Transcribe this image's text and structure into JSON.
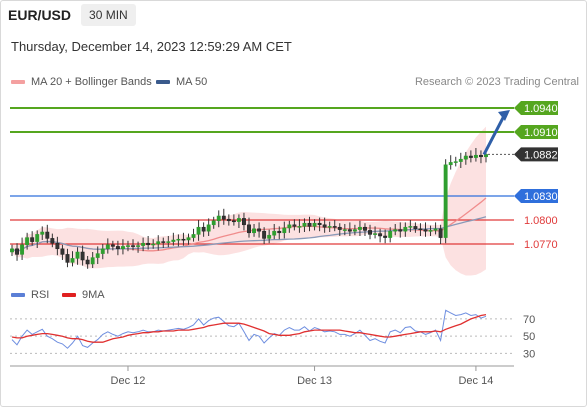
{
  "header": {
    "symbol": "EUR/USD",
    "timeframe": "30 MIN"
  },
  "datetime": "Thursday, December 14, 2023 12:59:29 AM CET",
  "legend": {
    "main": [
      {
        "label": "MA 20 + Bollinger Bands",
        "color": "#f4a0a0"
      },
      {
        "label": "MA 50",
        "color": "#3a5a8c"
      }
    ],
    "rsi": [
      {
        "label": "RSI",
        "color": "#5b7fd6"
      },
      {
        "label": "9MA",
        "color": "#e02020"
      }
    ]
  },
  "credit": "Research © 2023 Trading Central",
  "chart_data": {
    "type": "candlestick",
    "ylim": [
      1.0735,
      1.0955
    ],
    "current_price": 1.0882,
    "levels": [
      {
        "value": 1.094,
        "label": "1.0940",
        "color": "#55a61f",
        "kind": "resistance"
      },
      {
        "value": 1.091,
        "label": "1.0910",
        "color": "#55a61f",
        "kind": "resistance"
      },
      {
        "value": 1.0882,
        "label": "1.0882",
        "color": "#333333",
        "kind": "last"
      },
      {
        "value": 1.083,
        "label": "1.0830",
        "color": "#2f6fdc",
        "kind": "pivot"
      },
      {
        "value": 1.08,
        "label": "1.0800",
        "color": "#e03a3a",
        "kind": "support"
      },
      {
        "value": 1.077,
        "label": "1.0770",
        "color": "#e03a3a",
        "kind": "support"
      }
    ],
    "close": [
      1.0764,
      1.0757,
      1.0769,
      1.0778,
      1.0773,
      1.0782,
      1.0785,
      1.0777,
      1.0771,
      1.0764,
      1.0757,
      1.0747,
      1.0752,
      1.076,
      1.075,
      1.0745,
      1.0753,
      1.0758,
      1.0764,
      1.0769,
      1.0767,
      1.0764,
      1.0767,
      1.0768,
      1.0767,
      1.0768,
      1.0771,
      1.0769,
      1.077,
      1.0773,
      1.0772,
      1.0773,
      1.0775,
      1.0776,
      1.0775,
      1.0778,
      1.0782,
      1.0791,
      1.0786,
      1.0794,
      1.0799,
      1.0805,
      1.0801,
      1.0799,
      1.0798,
      1.0802,
      1.0794,
      1.0784,
      1.0789,
      1.0786,
      1.0777,
      1.0781,
      1.0786,
      1.0784,
      1.079,
      1.0794,
      1.0792,
      1.0792,
      1.0796,
      1.0792,
      1.0796,
      1.0794,
      1.0791,
      1.0792,
      1.0791,
      1.0788,
      1.0788,
      1.0786,
      1.0788,
      1.0791,
      1.0787,
      1.0782,
      1.0783,
      1.078,
      1.0778,
      1.0786,
      1.0788,
      1.0786,
      1.0791,
      1.0792,
      1.0789,
      1.0788,
      1.0786,
      1.0787,
      1.0789,
      1.0778,
      1.0869,
      1.0872,
      1.0873,
      1.0876,
      1.088,
      1.0878,
      1.0881,
      1.0879,
      1.0882
    ],
    "rsi": {
      "ylim": [
        20,
        85
      ],
      "levels": [
        70,
        50,
        30
      ],
      "rsi": [
        46,
        40,
        50,
        57,
        52,
        55,
        58,
        50,
        47,
        43,
        41,
        36,
        42,
        50,
        39,
        37,
        42,
        46,
        52,
        55,
        52,
        50,
        53,
        55,
        54,
        55,
        57,
        55,
        55,
        57,
        56,
        57,
        58,
        59,
        58,
        60,
        63,
        70,
        63,
        68,
        71,
        72,
        67,
        62,
        61,
        65,
        55,
        45,
        52,
        50,
        42,
        48,
        53,
        51,
        57,
        60,
        57,
        57,
        61,
        56,
        60,
        58,
        55,
        56,
        55,
        52,
        52,
        50,
        53,
        57,
        51,
        45,
        47,
        44,
        42,
        55,
        57,
        54,
        60,
        61,
        56,
        55,
        52,
        54,
        57,
        45,
        80,
        77,
        74,
        75,
        77,
        74,
        75,
        71,
        73
      ],
      "ma": [
        49,
        48,
        48,
        50,
        51,
        52,
        53,
        53,
        52,
        51,
        50,
        48,
        47,
        47,
        46,
        44,
        43,
        43,
        43,
        45,
        47,
        48,
        49,
        51,
        52,
        53,
        54,
        54,
        55,
        55,
        56,
        56,
        56,
        57,
        57,
        57,
        58,
        59,
        60,
        62,
        63,
        64,
        65,
        65,
        65,
        65,
        64,
        62,
        60,
        58,
        56,
        53,
        52,
        51,
        51,
        51,
        52,
        53,
        55,
        56,
        57,
        57,
        57,
        57,
        57,
        57,
        56,
        55,
        54,
        54,
        53,
        52,
        51,
        50,
        49,
        49,
        50,
        51,
        52,
        53,
        54,
        55,
        55,
        55,
        56,
        55,
        58,
        60,
        62,
        64,
        67,
        70,
        72,
        74,
        75
      ]
    },
    "x_ticks": [
      {
        "index": 23,
        "label": "Dec 12"
      },
      {
        "index": 60,
        "label": "Dec 13"
      },
      {
        "index": 92,
        "label": "Dec 14"
      }
    ],
    "rsi_tick_labels": [
      "70",
      "50",
      "30"
    ]
  }
}
